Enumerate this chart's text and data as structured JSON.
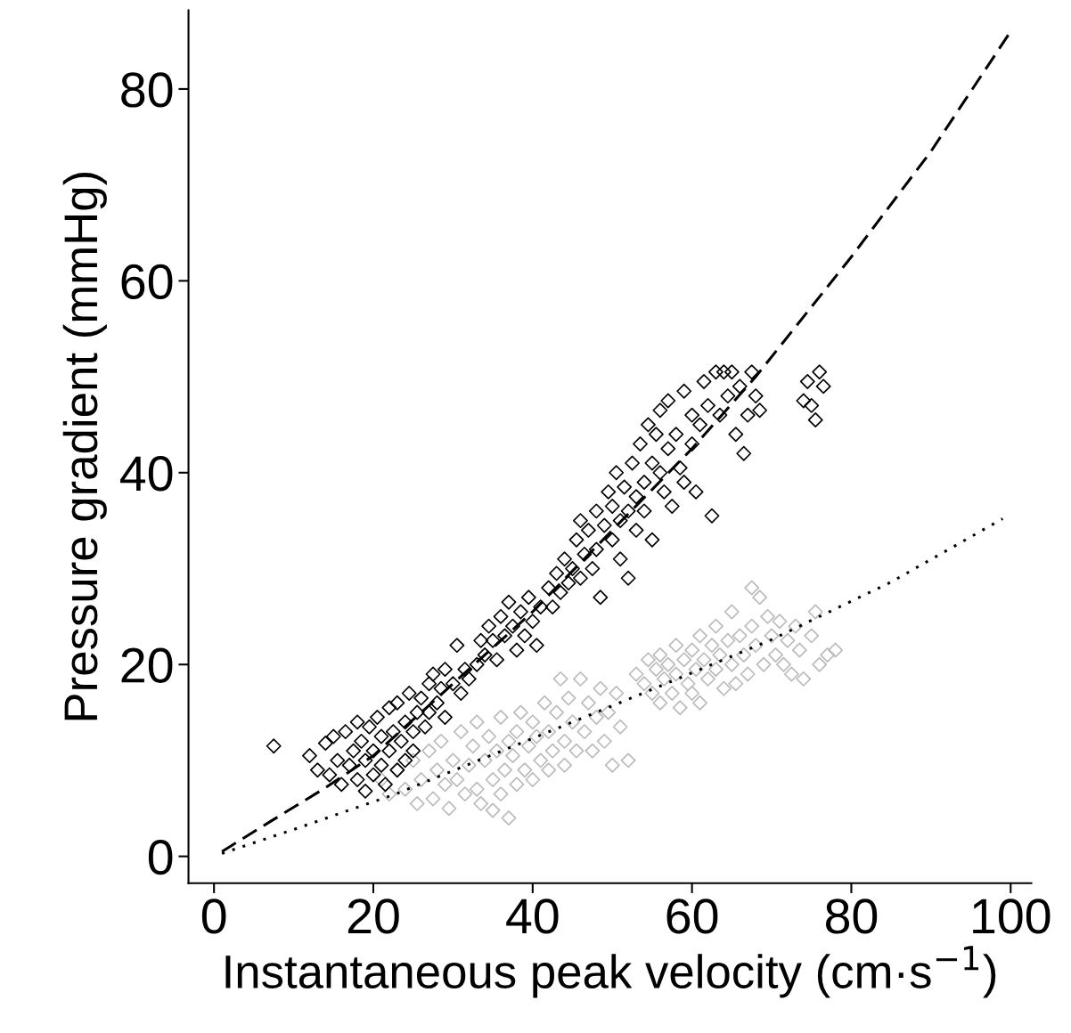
{
  "chart_data": {
    "type": "scatter",
    "xlabel": "Instantaneous peak velocity (cm·s$^{−1}$)",
    "ylabel": "Pressure gradient (mmHg)",
    "xlim": [
      -3.2,
      102.6
    ],
    "ylim": [
      -2.8,
      88.2
    ],
    "xticks": [
      0,
      20,
      40,
      60,
      80,
      100
    ],
    "yticks": [
      0,
      20,
      40,
      60,
      80
    ],
    "grid": false,
    "legend": false,
    "series": [
      {
        "marker": "diamond",
        "color": "#bbbbbb",
        "x": [
          21,
          22,
          23,
          24,
          25,
          25.5,
          26,
          27,
          27.5,
          28,
          28.5,
          29,
          29.5,
          30,
          30.5,
          31,
          31.5,
          32,
          32.5,
          33,
          33,
          33.5,
          34,
          34.5,
          35,
          35,
          35.5,
          36,
          36,
          36.5,
          37,
          37,
          37.5,
          38,
          38,
          38.5,
          39,
          39.5,
          40,
          40,
          40.5,
          41,
          41.5,
          42,
          42,
          42.5,
          43,
          43.5,
          44,
          44,
          44.5,
          45,
          45.5,
          46,
          46.5,
          47,
          47.5,
          48,
          48.5,
          49,
          49.5,
          50,
          50.5,
          51,
          52,
          53,
          54,
          54.5,
          55,
          55.5,
          56,
          56,
          56.5,
          57,
          57.5,
          58,
          58,
          58.5,
          59,
          59.5,
          60,
          60,
          60.5,
          61,
          61,
          61.5,
          62,
          62.5,
          63,
          63,
          63.5,
          64,
          64.5,
          65,
          65,
          65.5,
          66,
          66.5,
          67,
          67.5,
          67.5,
          68,
          68.5,
          69,
          69.5,
          70,
          70.5,
          71,
          71.5,
          72,
          72.5,
          73,
          73.5,
          74,
          75,
          75.5,
          76,
          77,
          78
        ],
        "values": [
          8,
          6.5,
          9,
          7,
          10,
          5.5,
          8,
          11,
          6,
          9,
          12,
          7.5,
          5,
          10,
          8,
          13,
          6.5,
          9.5,
          11.5,
          7,
          14,
          5.5,
          10,
          12.5,
          8,
          4.8,
          11,
          14.5,
          6.5,
          9,
          12,
          4,
          10.5,
          13,
          7.5,
          15,
          9,
          11.5,
          14,
          8,
          12.5,
          10,
          16,
          13,
          9,
          11,
          15,
          18.5,
          12,
          9.5,
          16.5,
          14,
          11,
          18.5,
          13,
          16,
          11,
          14.5,
          17.5,
          12,
          15,
          9.5,
          17,
          13.5,
          10,
          19,
          18,
          20.5,
          17,
          19.5,
          16,
          21,
          18.5,
          20,
          17,
          22,
          19,
          15.5,
          20.5,
          18,
          21.5,
          17,
          19.5,
          23,
          16,
          20.5,
          18.5,
          22,
          19.5,
          24,
          21,
          17.5,
          22.5,
          20,
          25.5,
          18,
          23,
          21,
          19,
          28,
          24,
          22,
          27,
          20,
          25,
          23,
          21,
          24.5,
          20,
          22.5,
          19,
          24,
          21.5,
          18.5,
          23,
          25.5,
          20,
          21,
          21.5
        ]
      },
      {
        "marker": "diamond",
        "color": "#000000",
        "x": [
          7.5,
          12,
          13,
          14,
          14.5,
          15,
          15.5,
          16,
          16.5,
          17,
          17.5,
          18,
          18,
          18.5,
          19,
          19,
          19.5,
          20,
          20,
          20.5,
          21,
          21,
          21.5,
          22,
          22,
          22.5,
          23,
          23,
          23.5,
          24,
          24,
          24.5,
          25,
          25,
          25.5,
          26,
          26.5,
          27,
          27,
          27.5,
          28,
          28.5,
          29,
          29,
          30,
          30.5,
          31,
          31.5,
          32,
          33,
          33.5,
          34,
          34.5,
          35,
          35.5,
          36,
          36.5,
          37,
          37.5,
          38,
          38.5,
          39,
          39.5,
          40,
          40.5,
          41,
          42,
          42.5,
          43,
          43.5,
          44,
          44.5,
          45,
          45.5,
          46,
          46,
          46.5,
          47,
          47.5,
          48,
          48,
          48.5,
          49,
          49.5,
          50,
          50,
          50.5,
          51,
          51,
          51.5,
          52,
          52,
          52.5,
          53,
          53,
          53.5,
          54,
          54,
          54.5,
          55,
          55,
          55.5,
          56,
          56,
          56.5,
          57,
          57,
          57.5,
          58,
          58.5,
          59,
          59,
          60,
          60,
          60.5,
          61,
          61.5,
          62,
          62.5,
          63,
          63.5,
          64,
          64.5,
          65,
          65.5,
          66,
          66.5,
          67,
          67.5,
          68,
          68.5,
          74,
          74.5,
          75,
          75.5,
          76,
          76.5
        ],
        "values": [
          11.5,
          10.5,
          9,
          11.8,
          8.5,
          12.5,
          10,
          7.5,
          13,
          9.5,
          11,
          14,
          8,
          12,
          10,
          6.8,
          13.5,
          11,
          8.5,
          14.5,
          9.5,
          12.5,
          7.5,
          11,
          15.5,
          13,
          9,
          16,
          12,
          14,
          10,
          17,
          13,
          11,
          15,
          16.5,
          13.5,
          18,
          15,
          19,
          16,
          17.5,
          14.5,
          19.5,
          18,
          22,
          17,
          19.5,
          18.5,
          20,
          22.5,
          21,
          24,
          22.5,
          20.5,
          25,
          23,
          26.5,
          24,
          21.5,
          25.5,
          23,
          27,
          24.5,
          22,
          26,
          28,
          26,
          29.5,
          27.5,
          31,
          28.5,
          30,
          33,
          29,
          35,
          31.5,
          34,
          30,
          36,
          32,
          27,
          34.5,
          38,
          33,
          36.5,
          40,
          35,
          31,
          38.5,
          36,
          29,
          41,
          37.5,
          34,
          43,
          39,
          36,
          45,
          41,
          33,
          44,
          40,
          46.5,
          38,
          47.5,
          42.5,
          36.5,
          44,
          40.5,
          48.5,
          39,
          46,
          43,
          38,
          45,
          49.5,
          47,
          35.5,
          50.5,
          46,
          50.5,
          48,
          50.5,
          44,
          49,
          42,
          46,
          50.5,
          48,
          46.5,
          47.5,
          49.5,
          47,
          45.5,
          50.5,
          49
        ]
      },
      {
        "type": "line",
        "line_style": "dashed",
        "marker": "none",
        "color": "#000000",
        "x": [
          1,
          7,
          13.9,
          20,
          30,
          40,
          50,
          60,
          68,
          80,
          90,
          100
        ],
        "values": [
          0.5,
          3.6,
          7.1,
          10.5,
          18,
          25.5,
          34,
          42.5,
          50,
          62.5,
          73.5,
          86
        ]
      },
      {
        "type": "line",
        "line_style": "dotted",
        "marker": "none",
        "color": "#000000",
        "x": [
          1,
          10,
          22.8,
          40,
          55,
          70,
          85,
          99
        ],
        "values": [
          0.3,
          2.8,
          6.5,
          12.3,
          17.4,
          22.6,
          28.6,
          35.2
        ]
      }
    ]
  }
}
